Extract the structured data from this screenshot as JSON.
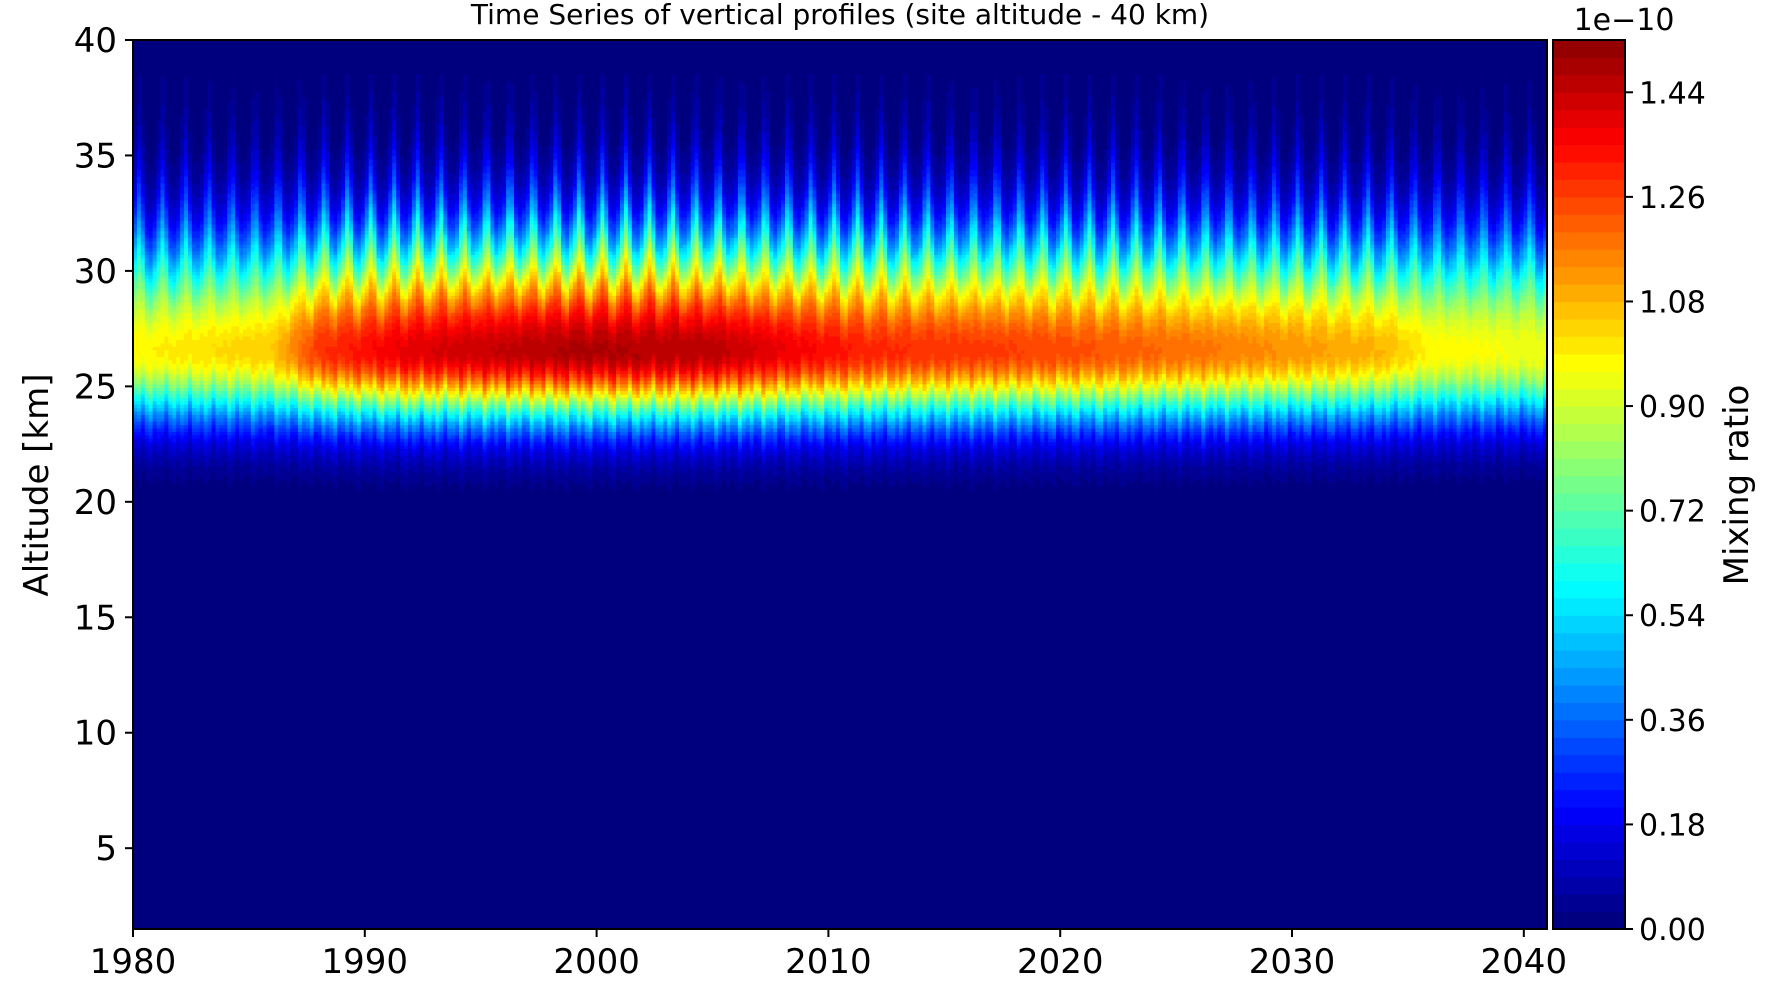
{
  "chart_data": {
    "type": "heatmap",
    "title": "Time Series of vertical profiles (site altitude - 40 km)",
    "xlabel": "",
    "ylabel": "Altitude [km]",
    "xlim": [
      1980,
      2041
    ],
    "ylim": [
      1.5,
      40
    ],
    "x_ticks": [
      1980,
      1990,
      2000,
      2010,
      2020,
      2030,
      2040
    ],
    "y_ticks": [
      5,
      10,
      15,
      20,
      25,
      30,
      35,
      40
    ],
    "colormap": "jet",
    "colorbar": {
      "label": "Mixing ratio",
      "multiplier": "1e−10",
      "range": [
        0.0,
        1.53
      ],
      "ticks": [
        0.0,
        0.18,
        0.36,
        0.54,
        0.72,
        0.9,
        1.08,
        1.26,
        1.44
      ],
      "tick_labels": [
        "0.00",
        "0.18",
        "0.36",
        "0.54",
        "0.72",
        "0.90",
        "1.08",
        "1.26",
        "1.44"
      ]
    },
    "profile_model": {
      "peak_altitude_km": [
        {
          "year": 1980,
          "value": 26.5
        },
        {
          "year": 2000,
          "value": 26.5
        },
        {
          "year": 2040,
          "value": 26.5
        }
      ],
      "peak_value_by_year": [
        {
          "year": 1980,
          "value": 0.98
        },
        {
          "year": 1986,
          "value": 1.05
        },
        {
          "year": 1988,
          "value": 1.28
        },
        {
          "year": 1992,
          "value": 1.4
        },
        {
          "year": 1999,
          "value": 1.48
        },
        {
          "year": 2005,
          "value": 1.46
        },
        {
          "year": 2009,
          "value": 1.36
        },
        {
          "year": 2012,
          "value": 1.3
        },
        {
          "year": 2020,
          "value": 1.25
        },
        {
          "year": 2027,
          "value": 1.17
        },
        {
          "year": 2034,
          "value": 1.08
        },
        {
          "year": 2036,
          "value": 0.98
        },
        {
          "year": 2041,
          "value": 0.95
        }
      ],
      "lower_edge_km": 17.8,
      "upper_extent_km": 38.5
    }
  },
  "colors": {
    "background": "#00007f",
    "frame": "#000000"
  }
}
